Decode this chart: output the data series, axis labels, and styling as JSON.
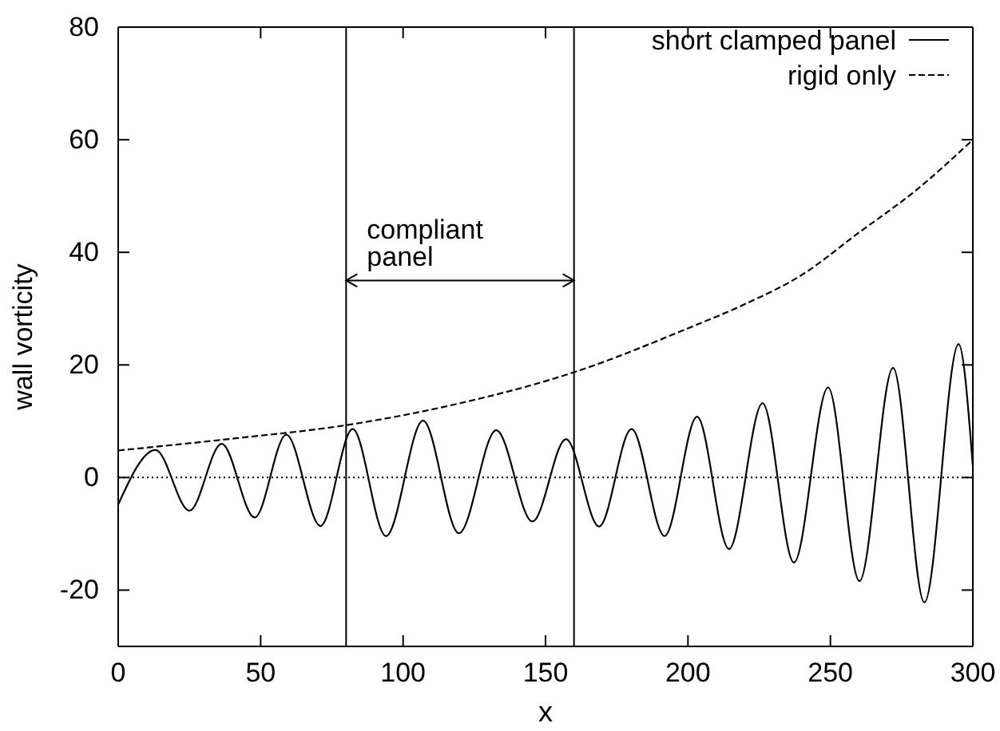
{
  "chart_data": {
    "type": "line",
    "xlabel": "x",
    "ylabel": "wall vorticity",
    "xlim": [
      0,
      300
    ],
    "xticks": [
      0,
      50,
      100,
      150,
      200,
      250,
      300
    ],
    "ylim": [
      -30,
      80
    ],
    "yticks": [
      -20,
      0,
      20,
      40,
      60,
      80
    ],
    "grid": false,
    "legend": "top right",
    "marker": "none",
    "series": [
      {
        "name": "short clamped panel",
        "color": "#000000",
        "line_style": "solid",
        "x": [
          0,
          13.1,
          25,
          36.3,
          47.9,
          59,
          71,
          82.3,
          94,
          107,
          119.6,
          132.7,
          145.4,
          157.2,
          168.8,
          180.2,
          191.8,
          203.2,
          214.4,
          226.2,
          237.2,
          249.2,
          260.2,
          272,
          283,
          295,
          300
        ],
        "values": [
          -4.8,
          4.9,
          -5.9,
          6.0,
          -7.1,
          7.6,
          -8.6,
          8.6,
          -10.4,
          10.1,
          -9.9,
          8.4,
          -7.8,
          6.8,
          -8.7,
          8.6,
          -10.4,
          10.8,
          -12.7,
          13.2,
          -15.1,
          16.0,
          -18.4,
          19.5,
          -22.2,
          23.7,
          2
        ]
      },
      {
        "name": "rigid only",
        "color": "#000000",
        "line_style": "dashed",
        "x": [
          0,
          40,
          80,
          120,
          160,
          200,
          220,
          240,
          260,
          280,
          300
        ],
        "values": [
          4.8,
          6.9,
          9.3,
          13.2,
          18.7,
          26.5,
          30.8,
          36,
          43.5,
          51,
          60
        ]
      }
    ],
    "ref_lines": [
      {
        "axis": "x",
        "value": 80,
        "color": "#000000",
        "line_style": "solid"
      },
      {
        "axis": "x",
        "value": 160,
        "color": "#000000",
        "line_style": "solid"
      },
      {
        "axis": "y",
        "value": 0,
        "color": "#000000",
        "line_style": "dotted"
      }
    ],
    "annotations": [
      {
        "text": "compliant panel",
        "x": 80,
        "y": 35
      }
    ]
  }
}
